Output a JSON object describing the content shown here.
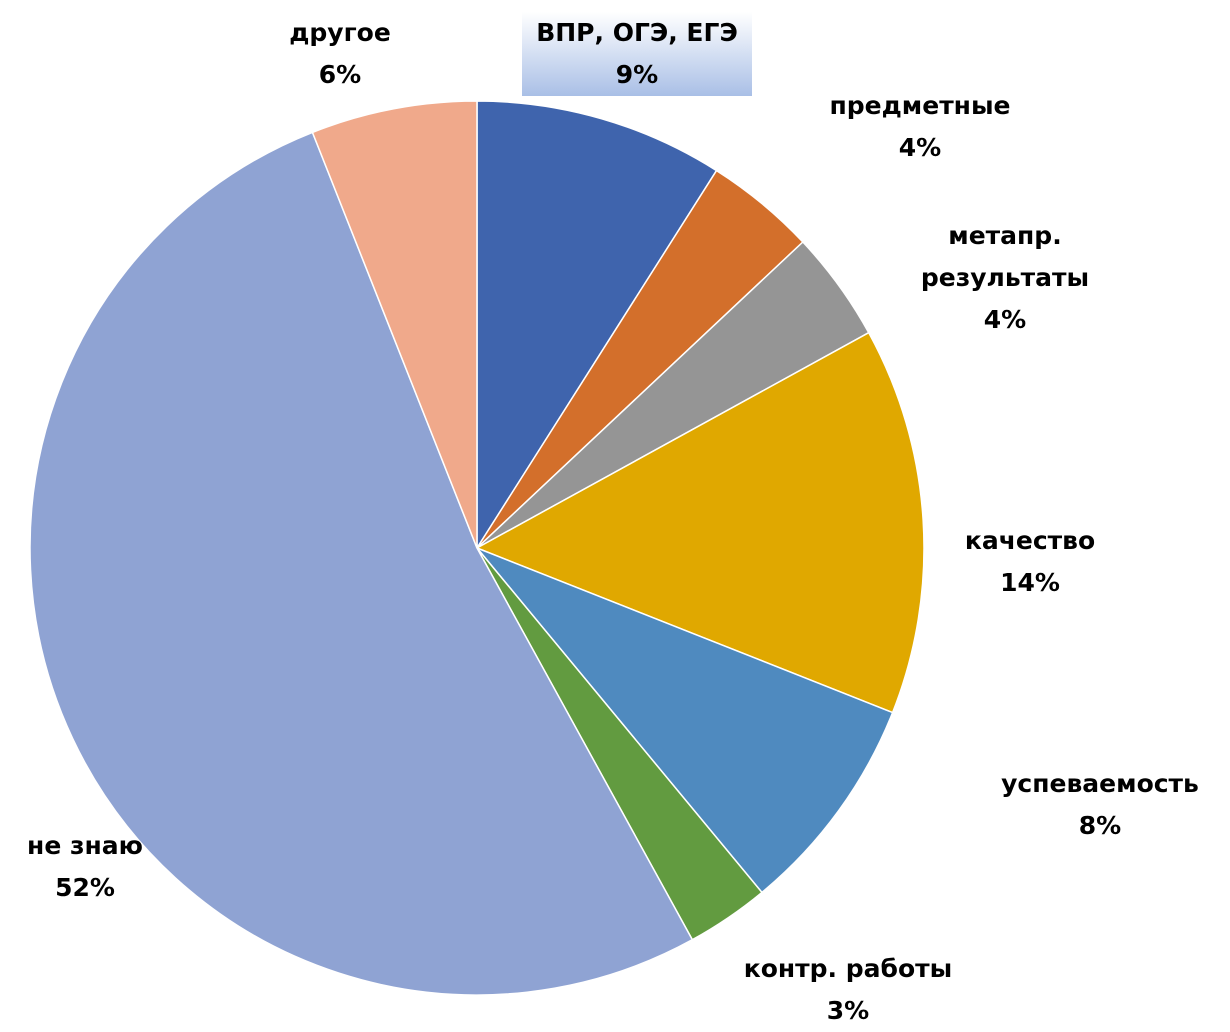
{
  "chart_data": {
    "type": "pie",
    "categories": [
      "ВПР, ОГЭ, ЕГЭ",
      "предметные",
      "метапр. результаты",
      "качество",
      "успеваемость",
      "контр. работы",
      "не знаю",
      "другое"
    ],
    "values": [
      9,
      4,
      4,
      14,
      8,
      3,
      52,
      6
    ],
    "value_labels": [
      "9%",
      "4%",
      "4%",
      "14%",
      "8%",
      "3%",
      "52%",
      "6%"
    ],
    "colors": [
      "#3f64ad",
      "#d36f2b",
      "#959595",
      "#e0a800",
      "#4f8abf",
      "#629b40",
      "#8fa3d3",
      "#f0a98b"
    ]
  }
}
